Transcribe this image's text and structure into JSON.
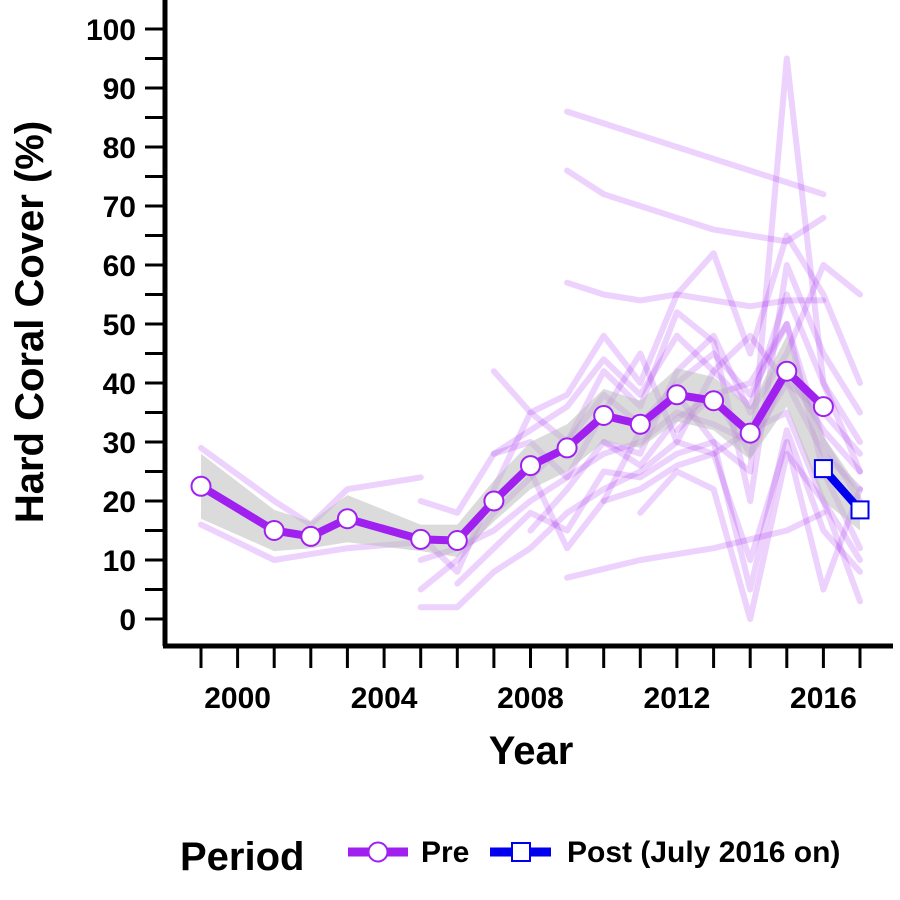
{
  "chart_data": {
    "type": "line",
    "xlabel": "Year",
    "ylabel": "Hard Coral Cover (%)",
    "xlim": [
      1999,
      2017
    ],
    "ylim": [
      0,
      100
    ],
    "x_ticks": [
      1999,
      2000,
      2001,
      2002,
      2003,
      2004,
      2005,
      2006,
      2007,
      2008,
      2009,
      2010,
      2011,
      2012,
      2013,
      2014,
      2015,
      2016,
      2017
    ],
    "x_tick_labels": [
      {
        "value": 2000,
        "label": "2000"
      },
      {
        "value": 2004,
        "label": "2004"
      },
      {
        "value": 2008,
        "label": "2008"
      },
      {
        "value": 2012,
        "label": "2012"
      },
      {
        "value": 2016,
        "label": "2016"
      }
    ],
    "y_ticks": [
      0,
      5,
      10,
      15,
      20,
      25,
      30,
      35,
      40,
      45,
      50,
      55,
      60,
      65,
      70,
      75,
      80,
      85,
      90,
      95,
      100
    ],
    "y_tick_labels": [
      {
        "value": 0,
        "label": "0"
      },
      {
        "value": 10,
        "label": "10"
      },
      {
        "value": 20,
        "label": "20"
      },
      {
        "value": 30,
        "label": "30"
      },
      {
        "value": 40,
        "label": "40"
      },
      {
        "value": 50,
        "label": "50"
      },
      {
        "value": 60,
        "label": "60"
      },
      {
        "value": 70,
        "label": "70"
      },
      {
        "value": 80,
        "label": "80"
      },
      {
        "value": 90,
        "label": "90"
      },
      {
        "value": 100,
        "label": "100"
      }
    ],
    "grid": false,
    "legend": {
      "title": "Period",
      "position": "bottom",
      "items": [
        {
          "label": "Pre",
          "color": "#a020f0",
          "marker": "circle"
        },
        {
          "label": "Post (July 2016 on)",
          "color": "#0000ee",
          "marker": "square"
        }
      ]
    },
    "series": [
      {
        "name": "Pre",
        "color": "#a020f0",
        "marker": "circle",
        "x": [
          1999,
          2001,
          2002,
          2003,
          2005,
          2006,
          2007,
          2008,
          2009,
          2010,
          2011,
          2012,
          2013,
          2014,
          2015,
          2016
        ],
        "y": [
          22.5,
          15,
          14,
          17,
          13.5,
          13.3,
          20,
          26,
          29,
          34.5,
          33,
          38,
          37,
          31.5,
          42,
          36
        ]
      },
      {
        "name": "Post (July 2016 on)",
        "color": "#0000ee",
        "marker": "square",
        "x": [
          2016,
          2017
        ],
        "y": [
          25.5,
          18.5
        ]
      }
    ],
    "confidence_band": {
      "color": "#bdbdbd",
      "x": [
        1999,
        2001,
        2002,
        2003,
        2005,
        2006,
        2007,
        2008,
        2009,
        2010,
        2011,
        2012,
        2013,
        2014,
        2015,
        2016,
        2017
      ],
      "lower": [
        17,
        11.5,
        12,
        13,
        11.5,
        10.5,
        16.5,
        22,
        25,
        30,
        29,
        33.5,
        32,
        27,
        36,
        20,
        15
      ],
      "upper": [
        28,
        18.5,
        16.5,
        21,
        16,
        16,
        23.5,
        30,
        33,
        39,
        37,
        42.5,
        41,
        36,
        48,
        31,
        22
      ]
    },
    "site_trajectories": {
      "color": "#a020f0",
      "opacity": 0.2,
      "lines": [
        {
          "x": [
            1999,
            2001,
            2002,
            2003,
            2005
          ],
          "y": [
            29,
            20,
            16,
            22,
            24
          ]
        },
        {
          "x": [
            1999,
            2001,
            2002,
            2003,
            2005
          ],
          "y": [
            16,
            10,
            11,
            12,
            13
          ]
        },
        {
          "x": [
            2005,
            2006,
            2007,
            2008,
            2009,
            2010,
            2011,
            2012,
            2013,
            2014,
            2015,
            2016,
            2017
          ],
          "y": [
            5,
            10,
            18,
            24,
            30,
            38,
            33,
            40,
            45,
            38,
            50,
            30,
            20
          ]
        },
        {
          "x": [
            2005,
            2006,
            2007,
            2008,
            2009,
            2010,
            2011,
            2012,
            2013,
            2014,
            2015,
            2016,
            2017
          ],
          "y": [
            2,
            2,
            8,
            12,
            18,
            22,
            25,
            30,
            28,
            32,
            35,
            20,
            10
          ]
        },
        {
          "x": [
            2005,
            2006,
            2007,
            2008,
            2009,
            2010,
            2011,
            2012,
            2013,
            2014,
            2015,
            2016,
            2017
          ],
          "y": [
            20,
            18,
            28,
            32,
            36,
            44,
            38,
            48,
            42,
            36,
            55,
            40,
            30
          ]
        },
        {
          "x": [
            2005,
            2006,
            2007,
            2008,
            2009,
            2010,
            2011,
            2012,
            2013,
            2014,
            2015,
            2016,
            2017
          ],
          "y": [
            10,
            12,
            15,
            20,
            24,
            28,
            30,
            35,
            33,
            30,
            40,
            28,
            22
          ]
        },
        {
          "x": [
            2005,
            2006,
            2007,
            2008,
            2009,
            2010,
            2011,
            2012,
            2013,
            2014,
            2015,
            2016,
            2017
          ],
          "y": [
            14,
            8,
            22,
            35,
            30,
            42,
            36,
            52,
            47,
            20,
            60,
            45,
            35
          ]
        },
        {
          "x": [
            2006,
            2007,
            2008,
            2009,
            2010,
            2011,
            2012,
            2013,
            2014,
            2015,
            2016,
            2017
          ],
          "y": [
            6,
            12,
            18,
            15,
            25,
            24,
            28,
            30,
            5,
            32,
            15,
            8
          ]
        },
        {
          "x": [
            2007,
            2008,
            2009,
            2010,
            2011,
            2012,
            2013,
            2014,
            2015,
            2016,
            2017
          ],
          "y": [
            42,
            35,
            38,
            48,
            40,
            55,
            62,
            45,
            65,
            55,
            40
          ]
        },
        {
          "x": [
            2008,
            2009,
            2010,
            2011,
            2012,
            2013,
            2014,
            2015,
            2016,
            2017
          ],
          "y": [
            15,
            22,
            30,
            26,
            34,
            38,
            28,
            42,
            32,
            25
          ]
        },
        {
          "x": [
            2009,
            2010,
            2011,
            2012,
            2013,
            2014,
            2015,
            2016
          ],
          "y": [
            86,
            84,
            82,
            80,
            78,
            76,
            74,
            72
          ]
        },
        {
          "x": [
            2009,
            2010,
            2011,
            2012,
            2013,
            2014,
            2015,
            2016
          ],
          "y": [
            76,
            72,
            70,
            68,
            66,
            65,
            64,
            68
          ]
        },
        {
          "x": [
            2009,
            2010,
            2011,
            2012,
            2013,
            2014,
            2015,
            2016
          ],
          "y": [
            57,
            55,
            54,
            55,
            54,
            53,
            54,
            54
          ]
        },
        {
          "x": [
            2009,
            2011,
            2013,
            2015,
            2016
          ],
          "y": [
            7,
            10,
            12,
            15,
            18
          ]
        },
        {
          "x": [
            2010,
            2011,
            2012,
            2013,
            2014,
            2015,
            2016,
            2017
          ],
          "y": [
            20,
            32,
            38,
            30,
            25,
            95,
            40,
            25
          ]
        },
        {
          "x": [
            2010,
            2011,
            2012,
            2013,
            2014,
            2015,
            2016,
            2017
          ],
          "y": [
            30,
            28,
            42,
            48,
            35,
            45,
            60,
            55
          ]
        },
        {
          "x": [
            2011,
            2012,
            2013,
            2014,
            2015,
            2016,
            2017
          ],
          "y": [
            18,
            25,
            22,
            0,
            28,
            20,
            3
          ]
        },
        {
          "x": [
            2012,
            2013,
            2014,
            2015,
            2016,
            2017
          ],
          "y": [
            32,
            38,
            40,
            50,
            25,
            12
          ]
        },
        {
          "x": [
            2008,
            2009,
            2010,
            2011,
            2012,
            2013,
            2014,
            2015,
            2016,
            2017
          ],
          "y": [
            25,
            12,
            20,
            22,
            26,
            28,
            10,
            30,
            5,
            22
          ]
        },
        {
          "x": [
            2007,
            2008,
            2009,
            2010,
            2011,
            2012,
            2013,
            2014,
            2015,
            2016,
            2017
          ],
          "y": [
            28,
            30,
            24,
            35,
            45,
            30,
            42,
            48,
            40,
            35,
            28
          ]
        }
      ]
    }
  }
}
